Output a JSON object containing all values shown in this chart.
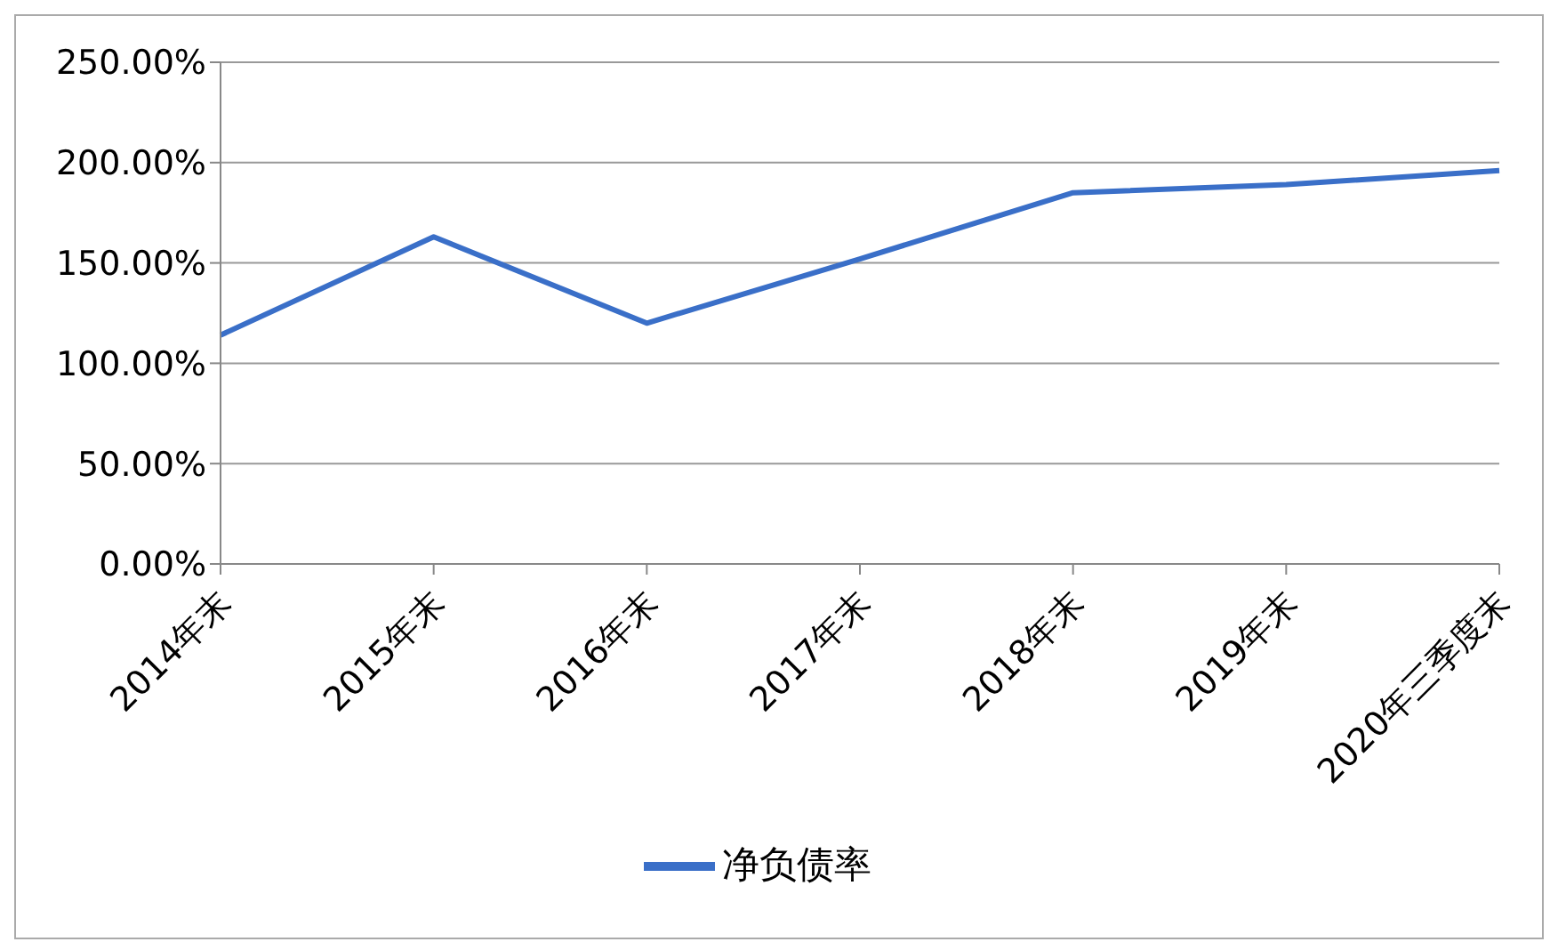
{
  "chart_data": {
    "type": "line",
    "categories": [
      "2014年末",
      "2015年末",
      "2016年末",
      "2017年末",
      "2018年末",
      "2019年末",
      "2020年三季度末"
    ],
    "series": [
      {
        "name": "净负债率",
        "color": "#3a6fc8",
        "values": [
          114,
          163,
          120,
          152,
          185,
          189,
          196
        ]
      }
    ],
    "ylim": [
      0,
      250
    ],
    "yticks": [
      {
        "value": 0,
        "label": "0.00%"
      },
      {
        "value": 50,
        "label": "50.00%"
      },
      {
        "value": 100,
        "label": "100.00%"
      },
      {
        "value": 150,
        "label": "150.00%"
      },
      {
        "value": 200,
        "label": "200.00%"
      },
      {
        "value": 250,
        "label": "250.00%"
      }
    ],
    "grid": "y",
    "legend": "bottom",
    "marker": "none",
    "line_style": "solid"
  }
}
